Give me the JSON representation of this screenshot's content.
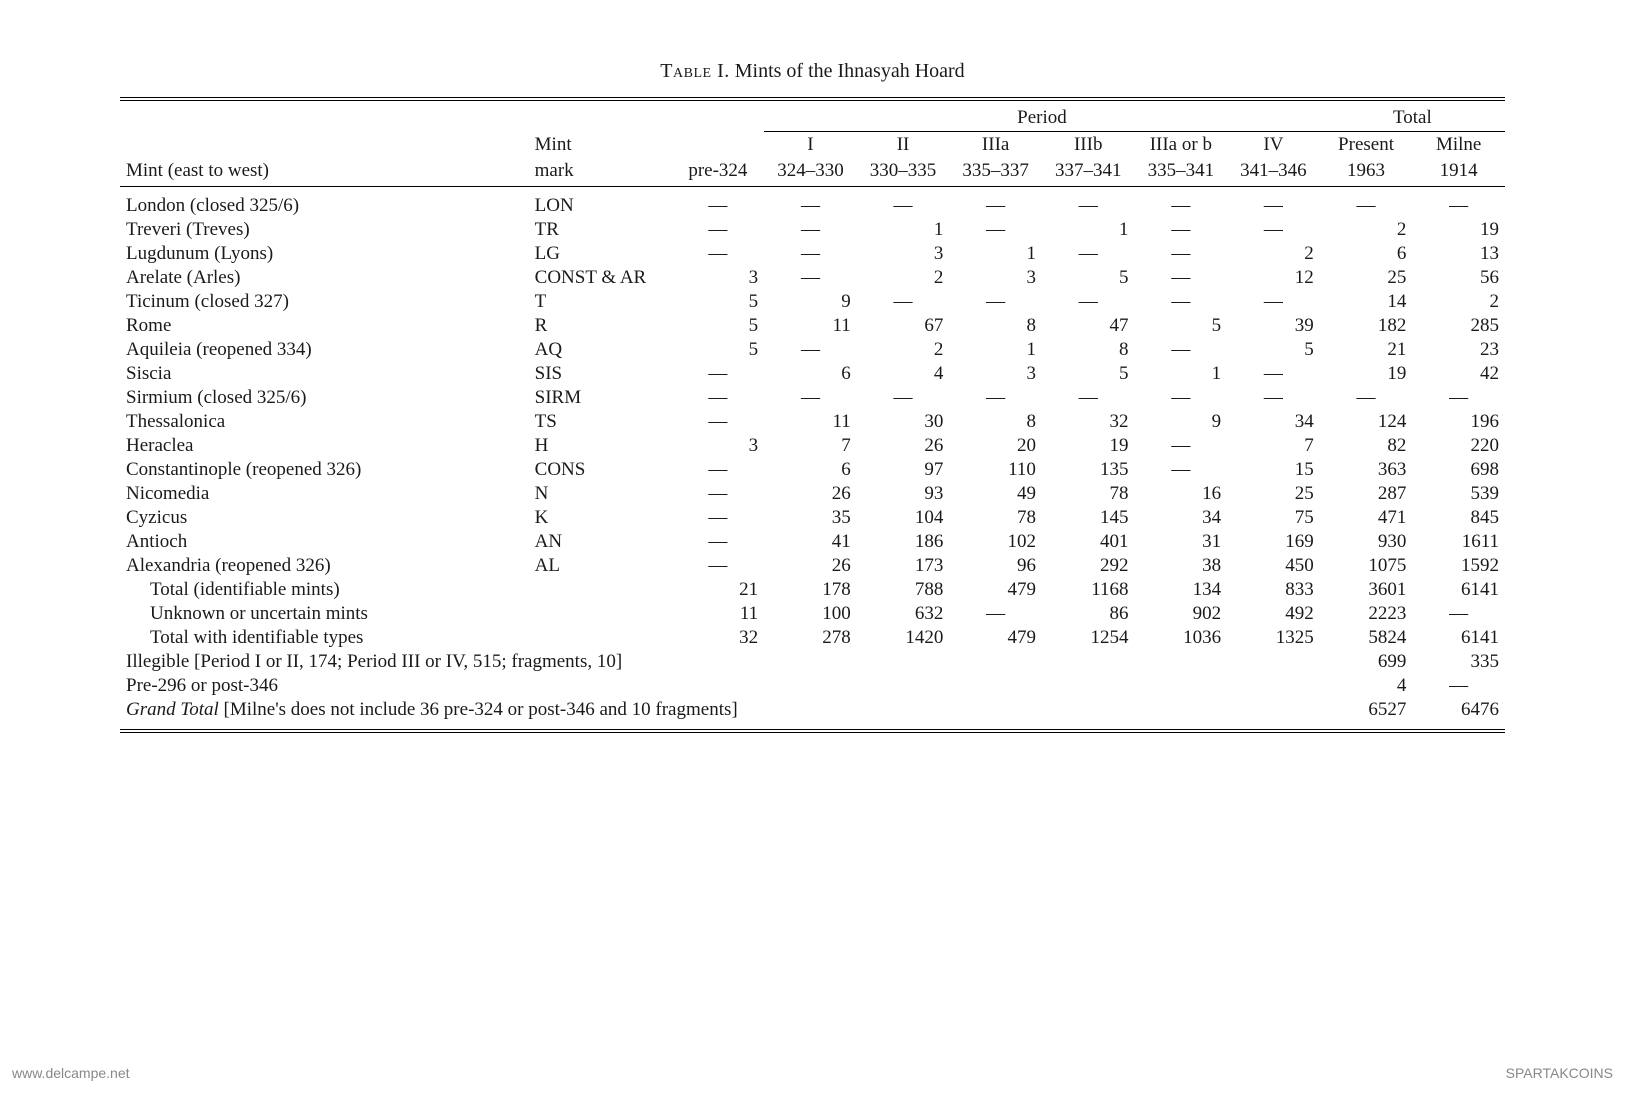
{
  "title_prefix": "Table I.",
  "title_text": "Mints of the Ihnasyah Hoard",
  "headers": {
    "mint": "Mint (east to west)",
    "mark": "Mint mark",
    "period_group": "Period",
    "total_group": "Total",
    "periods": {
      "pre324": {
        "label": "",
        "range": "pre-324"
      },
      "I": {
        "label": "I",
        "range": "324–330"
      },
      "II": {
        "label": "II",
        "range": "330–335"
      },
      "IIIa": {
        "label": "IIIa",
        "range": "335–337"
      },
      "IIIb": {
        "label": "IIIb",
        "range": "337–341"
      },
      "IIIaorb": {
        "label": "IIIa or b",
        "range": "335–341"
      },
      "IV": {
        "label": "IV",
        "range": "341–346"
      }
    },
    "totals": {
      "present": {
        "label": "Present",
        "range": "1963"
      },
      "milne": {
        "label": "Milne",
        "range": "1914"
      }
    }
  },
  "dash": "—",
  "rows": [
    {
      "mint": "London (closed 325/6)",
      "mark": "LON",
      "v": [
        "—",
        "—",
        "—",
        "—",
        "—",
        "—",
        "—",
        "—",
        "—"
      ]
    },
    {
      "mint": "Treveri (Treves)",
      "mark": "TR",
      "v": [
        "—",
        "—",
        "1",
        "—",
        "1",
        "—",
        "—",
        "2",
        "19"
      ]
    },
    {
      "mint": "Lugdunum (Lyons)",
      "mark": "LG",
      "v": [
        "—",
        "—",
        "3",
        "1",
        "—",
        "—",
        "2",
        "6",
        "13"
      ]
    },
    {
      "mint": "Arelate (Arles)",
      "mark": "CONST & AR",
      "v": [
        "3",
        "—",
        "2",
        "3",
        "5",
        "—",
        "12",
        "25",
        "56"
      ]
    },
    {
      "mint": "Ticinum (closed 327)",
      "mark": "T",
      "v": [
        "5",
        "9",
        "—",
        "—",
        "—",
        "—",
        "—",
        "14",
        "2"
      ]
    },
    {
      "mint": "Rome",
      "mark": "R",
      "v": [
        "5",
        "11",
        "67",
        "8",
        "47",
        "5",
        "39",
        "182",
        "285"
      ]
    },
    {
      "mint": "Aquileia (reopened 334)",
      "mark": "AQ",
      "v": [
        "5",
        "—",
        "2",
        "1",
        "8",
        "—",
        "5",
        "21",
        "23"
      ]
    },
    {
      "mint": "Siscia",
      "mark": "SIS",
      "v": [
        "—",
        "6",
        "4",
        "3",
        "5",
        "1",
        "—",
        "19",
        "42"
      ]
    },
    {
      "mint": "Sirmium (closed 325/6)",
      "mark": "SIRM",
      "v": [
        "—",
        "—",
        "—",
        "—",
        "—",
        "—",
        "—",
        "—",
        "—"
      ]
    },
    {
      "mint": "Thessalonica",
      "mark": "TS",
      "v": [
        "—",
        "11",
        "30",
        "8",
        "32",
        "9",
        "34",
        "124",
        "196"
      ]
    },
    {
      "mint": "Heraclea",
      "mark": "H",
      "v": [
        "3",
        "7",
        "26",
        "20",
        "19",
        "—",
        "7",
        "82",
        "220"
      ]
    },
    {
      "mint": "Constantinople (reopened 326)",
      "mark": "CONS",
      "v": [
        "—",
        "6",
        "97",
        "110",
        "135",
        "—",
        "15",
        "363",
        "698"
      ]
    },
    {
      "mint": "Nicomedia",
      "mark": "N",
      "v": [
        "—",
        "26",
        "93",
        "49",
        "78",
        "16",
        "25",
        "287",
        "539"
      ]
    },
    {
      "mint": "Cyzicus",
      "mark": "K",
      "v": [
        "—",
        "35",
        "104",
        "78",
        "145",
        "34",
        "75",
        "471",
        "845"
      ]
    },
    {
      "mint": "Antioch",
      "mark": "AN",
      "v": [
        "—",
        "41",
        "186",
        "102",
        "401",
        "31",
        "169",
        "930",
        "1611"
      ]
    },
    {
      "mint": "Alexandria (reopened 326)",
      "mark": "AL",
      "v": [
        "—",
        "26",
        "173",
        "96",
        "292",
        "38",
        "450",
        "1075",
        "1592"
      ]
    },
    {
      "mint": "Total (identifiable mints)",
      "mark": "",
      "indent": true,
      "v": [
        "21",
        "178",
        "788",
        "479",
        "1168",
        "134",
        "833",
        "3601",
        "6141"
      ]
    },
    {
      "mint": "Unknown or uncertain mints",
      "mark": "",
      "indent": true,
      "v": [
        "11",
        "100",
        "632",
        "—",
        "86",
        "902",
        "492",
        "2223",
        "—"
      ]
    },
    {
      "mint": "Total with identifiable types",
      "mark": "",
      "indent": true,
      "v": [
        "32",
        "278",
        "1420",
        "479",
        "1254",
        "1036",
        "1325",
        "5824",
        "6141"
      ]
    }
  ],
  "spanning_rows": [
    {
      "text": "Illegible [Period I or II, 174; Period III or IV, 515; fragments, 10]",
      "present": "699",
      "milne": "335"
    },
    {
      "text": "Pre-296 or post-346",
      "present": "4",
      "milne": "—"
    },
    {
      "text_italic": "Grand Total",
      "text_rest": " [Milne's does not include 36 pre-324 or post-346 and 10 fragments]",
      "present": "6527",
      "milne": "6476"
    }
  ],
  "watermarks": {
    "left": "www.delcampe.net",
    "right": "SPARTAKCOINS"
  },
  "colors": {
    "page_bg": "#fdfcf0",
    "paper_bg": "#ffffff",
    "text": "#1a1a1a",
    "rule": "#000000",
    "watermark": "#888888"
  }
}
